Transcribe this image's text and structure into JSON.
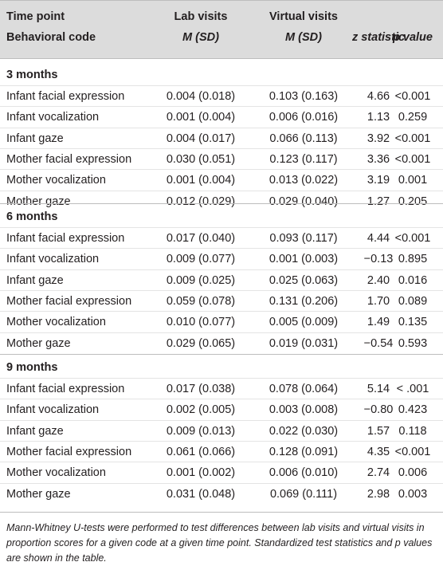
{
  "header": {
    "row1": {
      "time_point": "Time point",
      "lab_visits": "Lab visits",
      "virtual_visits": "Virtual visits"
    },
    "row2": {
      "behavioral_code": "Behavioral code",
      "lab_stat": "M (SD)",
      "virtual_stat": "M (SD)",
      "z": "z statistic",
      "p": "p value"
    }
  },
  "groups": [
    {
      "title": "3 months",
      "rows": [
        {
          "code": "Infant facial expression",
          "lab": "0.004 (0.018)",
          "virtual": "0.103 (0.163)",
          "z": "4.66",
          "p": "<0.001"
        },
        {
          "code": "Infant vocalization",
          "lab": "0.001 (0.004)",
          "virtual": "0.006 (0.016)",
          "z": "1.13",
          "p": "0.259"
        },
        {
          "code": "Infant gaze",
          "lab": "0.004 (0.017)",
          "virtual": "0.066 (0.113)",
          "z": "3.92",
          "p": "<0.001"
        },
        {
          "code": "Mother facial expression",
          "lab": "0.030 (0.051)",
          "virtual": "0.123 (0.117)",
          "z": "3.36",
          "p": "<0.001"
        },
        {
          "code": "Mother vocalization",
          "lab": "0.001 (0.004)",
          "virtual": "0.013 (0.022)",
          "z": "3.19",
          "p": "0.001"
        },
        {
          "code": "Mother gaze",
          "lab": "0.012 (0.029)",
          "virtual": "0.029 (0.040)",
          "z": "1.27",
          "p": "0.205"
        }
      ]
    },
    {
      "title": "6 months",
      "rows": [
        {
          "code": "Infant facial expression",
          "lab": "0.017 (0.040)",
          "virtual": "0.093 (0.117)",
          "z": "4.44",
          "p": "<0.001"
        },
        {
          "code": "Infant vocalization",
          "lab": "0.009 (0.077)",
          "virtual": "0.001 (0.003)",
          "z": "−0.13",
          "p": "0.895"
        },
        {
          "code": "Infant gaze",
          "lab": "0.009 (0.025)",
          "virtual": "0.025 (0.063)",
          "z": "2.40",
          "p": "0.016"
        },
        {
          "code": "Mother facial expression",
          "lab": "0.059 (0.078)",
          "virtual": "0.131 (0.206)",
          "z": "1.70",
          "p": "0.089"
        },
        {
          "code": "Mother vocalization",
          "lab": "0.010 (0.077)",
          "virtual": "0.005 (0.009)",
          "z": "1.49",
          "p": "0.135"
        },
        {
          "code": "Mother gaze",
          "lab": "0.029 (0.065)",
          "virtual": "0.019 (0.031)",
          "z": "−0.54",
          "p": "0.593"
        }
      ]
    },
    {
      "title": "9 months",
      "rows": [
        {
          "code": "Infant facial expression",
          "lab": "0.017 (0.038)",
          "virtual": "0.078 (0.064)",
          "z": "5.14",
          "p": "< .001"
        },
        {
          "code": "Infant vocalization",
          "lab": "0.002 (0.005)",
          "virtual": "0.003 (0.008)",
          "z": "−0.80",
          "p": "0.423"
        },
        {
          "code": "Infant gaze",
          "lab": "0.009 (0.013)",
          "virtual": "0.022 (0.030)",
          "z": "1.57",
          "p": "0.118"
        },
        {
          "code": "Mother facial expression",
          "lab": "0.061 (0.066)",
          "virtual": "0.128 (0.091)",
          "z": "4.35",
          "p": "<0.001"
        },
        {
          "code": "Mother vocalization",
          "lab": "0.001 (0.002)",
          "virtual": "0.006 (0.010)",
          "z": "2.74",
          "p": "0.006"
        },
        {
          "code": "Mother gaze",
          "lab": "0.031 (0.048)",
          "virtual": "0.069 (0.111)",
          "z": "2.98",
          "p": "0.003"
        }
      ]
    }
  ],
  "footnote": "Mann-Whitney U-tests were performed to test differences between lab visits and virtual visits in proportion scores for a given code at a given time point. Standardized test statistics and p values are shown in the table."
}
